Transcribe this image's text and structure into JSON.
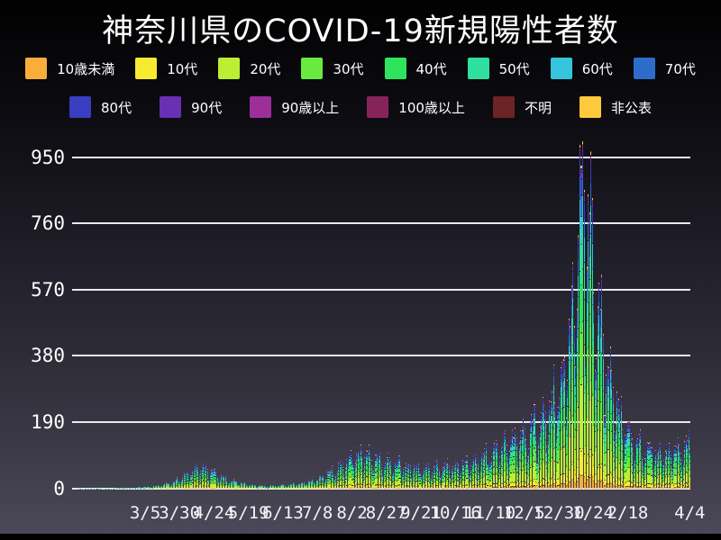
{
  "title": "神奈川県のCOVID-19新規陽性者数",
  "colors": {
    "background_top": "#010102",
    "background_bottom": "#4b4857",
    "grid_line": "#e9e9ef",
    "text": "#ffffff",
    "bar_outline": "#1c1a28"
  },
  "y_axis": {
    "tick_labels": [
      "0",
      "190",
      "380",
      "570",
      "760",
      "950"
    ]
  },
  "chart_data": {
    "type": "bar",
    "subtype": "stacked-daily-time-series",
    "title": "神奈川県のCOVID-19新規陽性者数",
    "x_start_date": "2020-01-16",
    "x_end_date": "2021-04-04",
    "num_days": 445,
    "ylim": [
      0,
      1000
    ],
    "grid": "on",
    "legend_position": "top",
    "y_gridlines": [
      0,
      190,
      380,
      570,
      760,
      950
    ],
    "x_ticks": [
      {
        "day": 49,
        "label": "3/5"
      },
      {
        "day": 74,
        "label": "3/30"
      },
      {
        "day": 99,
        "label": "4/24"
      },
      {
        "day": 124,
        "label": "5/19"
      },
      {
        "day": 149,
        "label": "6/13"
      },
      {
        "day": 174,
        "label": "7/8"
      },
      {
        "day": 199,
        "label": "8/2"
      },
      {
        "day": 224,
        "label": "8/27"
      },
      {
        "day": 249,
        "label": "9/21"
      },
      {
        "day": 274,
        "label": "10/16"
      },
      {
        "day": 299,
        "label": "11/10"
      },
      {
        "day": 324,
        "label": "12/5"
      },
      {
        "day": 349,
        "label": "12/30"
      },
      {
        "day": 374,
        "label": "1/24"
      },
      {
        "day": 399,
        "label": "2/18"
      },
      {
        "day": 444,
        "label": "4/4"
      }
    ],
    "series": [
      {
        "name": "10歳未満",
        "color": "#F9AE3B",
        "share": 0.042
      },
      {
        "name": "10代",
        "color": "#F6EB2E",
        "share": 0.075
      },
      {
        "name": "20代",
        "color": "#BCEF33",
        "share": 0.205
      },
      {
        "name": "30代",
        "color": "#69EA3F",
        "share": 0.16
      },
      {
        "name": "40代",
        "color": "#2EE45F",
        "share": 0.15
      },
      {
        "name": "50代",
        "color": "#2EDFA0",
        "share": 0.125
      },
      {
        "name": "60代",
        "color": "#35C5DC",
        "share": 0.085
      },
      {
        "name": "70代",
        "color": "#2E6CCC",
        "share": 0.066
      },
      {
        "name": "80代",
        "color": "#3A3DC2",
        "share": 0.05
      },
      {
        "name": "90代",
        "color": "#6930B4",
        "share": 0.022
      },
      {
        "name": "90歳以上",
        "color": "#9C2F99",
        "share": 0.007
      },
      {
        "name": "100歳以上",
        "color": "#86245A",
        "share": 0.001
      },
      {
        "name": "不明",
        "color": "#6C2424",
        "share": 0.002
      },
      {
        "name": "非公表",
        "color": "#FFC93E",
        "share": 0.01
      }
    ],
    "legend_rows": [
      8,
      6
    ],
    "daily_total_envelope": [
      [
        0,
        1
      ],
      [
        10,
        1
      ],
      [
        25,
        1
      ],
      [
        40,
        3
      ],
      [
        49,
        5
      ],
      [
        60,
        10
      ],
      [
        70,
        20
      ],
      [
        80,
        45
      ],
      [
        88,
        70
      ],
      [
        93,
        62
      ],
      [
        99,
        45
      ],
      [
        110,
        24
      ],
      [
        124,
        12
      ],
      [
        135,
        8
      ],
      [
        149,
        10
      ],
      [
        162,
        16
      ],
      [
        174,
        28
      ],
      [
        186,
        55
      ],
      [
        199,
        95
      ],
      [
        206,
        112
      ],
      [
        215,
        92
      ],
      [
        224,
        82
      ],
      [
        235,
        70
      ],
      [
        249,
        60
      ],
      [
        262,
        64
      ],
      [
        274,
        70
      ],
      [
        287,
        82
      ],
      [
        299,
        105
      ],
      [
        310,
        140
      ],
      [
        324,
        165
      ],
      [
        337,
        205
      ],
      [
        349,
        300
      ],
      [
        356,
        430
      ],
      [
        361,
        640
      ],
      [
        365,
        840
      ],
      [
        367,
        900
      ],
      [
        369,
        860
      ],
      [
        372,
        740
      ],
      [
        374,
        640
      ],
      [
        380,
        470
      ],
      [
        385,
        360
      ],
      [
        390,
        265
      ],
      [
        395,
        205
      ],
      [
        399,
        165
      ],
      [
        406,
        135
      ],
      [
        413,
        115
      ],
      [
        420,
        108
      ],
      [
        427,
        112
      ],
      [
        434,
        118
      ],
      [
        440,
        126
      ],
      [
        444,
        132
      ]
    ],
    "weekly_multipliers": [
      0.92,
      0.52,
      0.74,
      1.0,
      1.08,
      1.14,
      1.18
    ],
    "start_day_of_week": 4,
    "jitter": {
      "a1": 0.1,
      "f1": 2.3,
      "a2": 0.06,
      "f2": 0.73
    },
    "max_daily_total": 995,
    "peak": {
      "approx_date": "2021-01-17",
      "approx_value": 995
    }
  }
}
